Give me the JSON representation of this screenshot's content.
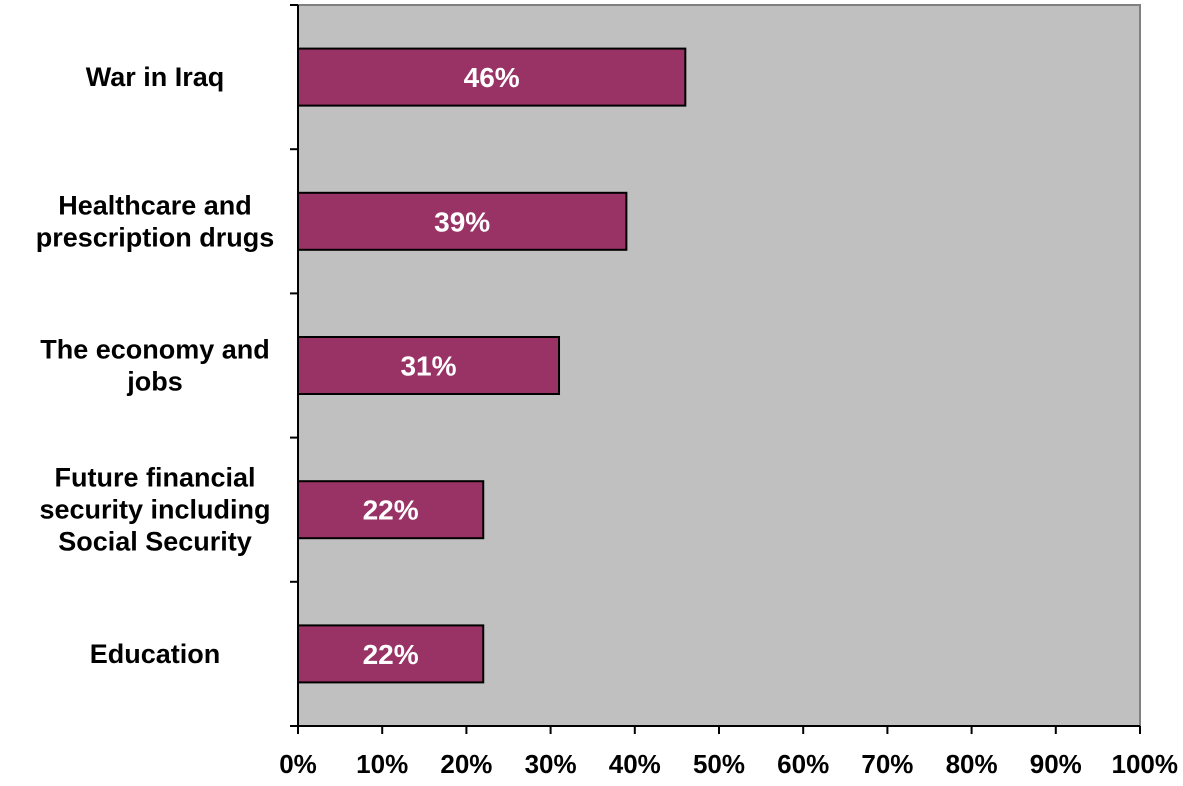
{
  "chart_data": {
    "type": "bar",
    "orientation": "horizontal",
    "title": "",
    "xlabel": "",
    "ylabel": "",
    "categories": [
      [
        "War in Iraq"
      ],
      [
        "Healthcare and",
        "prescription drugs"
      ],
      [
        "The economy and",
        "jobs"
      ],
      [
        "Future financial",
        "security including",
        "Social Security"
      ],
      [
        "Education"
      ]
    ],
    "values": [
      46,
      39,
      31,
      22,
      22
    ],
    "data_labels": [
      "46%",
      "39%",
      "31%",
      "22%",
      "22%"
    ],
    "xlim": [
      0,
      100
    ],
    "x_ticks": [
      0,
      10,
      20,
      30,
      40,
      50,
      60,
      70,
      80,
      90,
      100
    ],
    "x_tick_labels": [
      "0%",
      "10%",
      "20%",
      "30%",
      "40%",
      "50%",
      "60%",
      "70%",
      "80%",
      "90%",
      "100%"
    ],
    "grid": false,
    "legend": "none",
    "colors": {
      "bar": "#993366",
      "plot_background": "#c0c0c0",
      "data_label": "#ffffff"
    }
  }
}
